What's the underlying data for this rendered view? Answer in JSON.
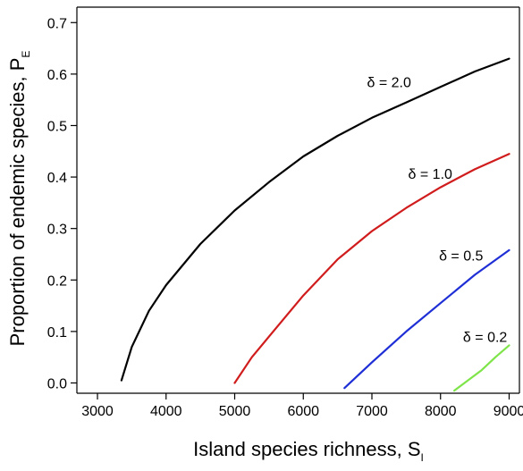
{
  "chart_data": {
    "type": "line",
    "xlabel": "Island species richness, S",
    "xlabel_sub": "I",
    "ylabel": "Proportion of endemic species, P",
    "ylabel_sub": "E",
    "xlim": [
      2700,
      9150
    ],
    "ylim": [
      -0.02,
      0.73
    ],
    "xticks": [
      3000,
      4000,
      5000,
      6000,
      7000,
      8000,
      9000
    ],
    "xtick_labels": [
      "3000",
      "4000",
      "5000",
      "6000",
      "7000",
      "8000",
      "9000"
    ],
    "yticks": [
      0.0,
      0.1,
      0.2,
      0.3,
      0.4,
      0.5,
      0.6,
      0.7
    ],
    "ytick_labels": [
      "0.0",
      "0.1",
      "0.2",
      "0.3",
      "0.4",
      "0.5",
      "0.6",
      "0.7"
    ],
    "grid": false,
    "series": [
      {
        "name": "δ = 2.0",
        "color": "#000000",
        "x": [
          3350,
          3500,
          3750,
          4000,
          4500,
          5000,
          5500,
          6000,
          6500,
          7000,
          7500,
          8000,
          8500,
          9000
        ],
        "y": [
          0.005,
          0.07,
          0.14,
          0.19,
          0.27,
          0.335,
          0.39,
          0.44,
          0.48,
          0.515,
          0.545,
          0.575,
          0.605,
          0.63
        ]
      },
      {
        "name": "δ = 1.0",
        "color": "#d01c1c",
        "x": [
          5000,
          5250,
          5500,
          6000,
          6500,
          7000,
          7500,
          8000,
          8500,
          9000
        ],
        "y": [
          0.0,
          0.05,
          0.09,
          0.17,
          0.24,
          0.295,
          0.34,
          0.38,
          0.415,
          0.445
        ]
      },
      {
        "name": "δ = 0.5",
        "color": "#1f2fd6",
        "x": [
          6600,
          7000,
          7500,
          8000,
          8500,
          9000
        ],
        "y": [
          -0.01,
          0.04,
          0.1,
          0.155,
          0.21,
          0.258
        ]
      },
      {
        "name": "δ = 0.2",
        "color": "#7fe44a",
        "x": [
          8200,
          8400,
          8600,
          8800,
          9000
        ],
        "y": [
          -0.015,
          0.005,
          0.025,
          0.05,
          0.073
        ]
      }
    ],
    "annotations": [
      {
        "text": "δ = 2.0",
        "x": 7250,
        "y": 0.575
      },
      {
        "text": "δ = 1.0",
        "x": 7850,
        "y": 0.397
      },
      {
        "text": "δ = 0.5",
        "x": 8300,
        "y": 0.238
      },
      {
        "text": "δ = 0.2",
        "x": 8650,
        "y": 0.08
      }
    ]
  }
}
